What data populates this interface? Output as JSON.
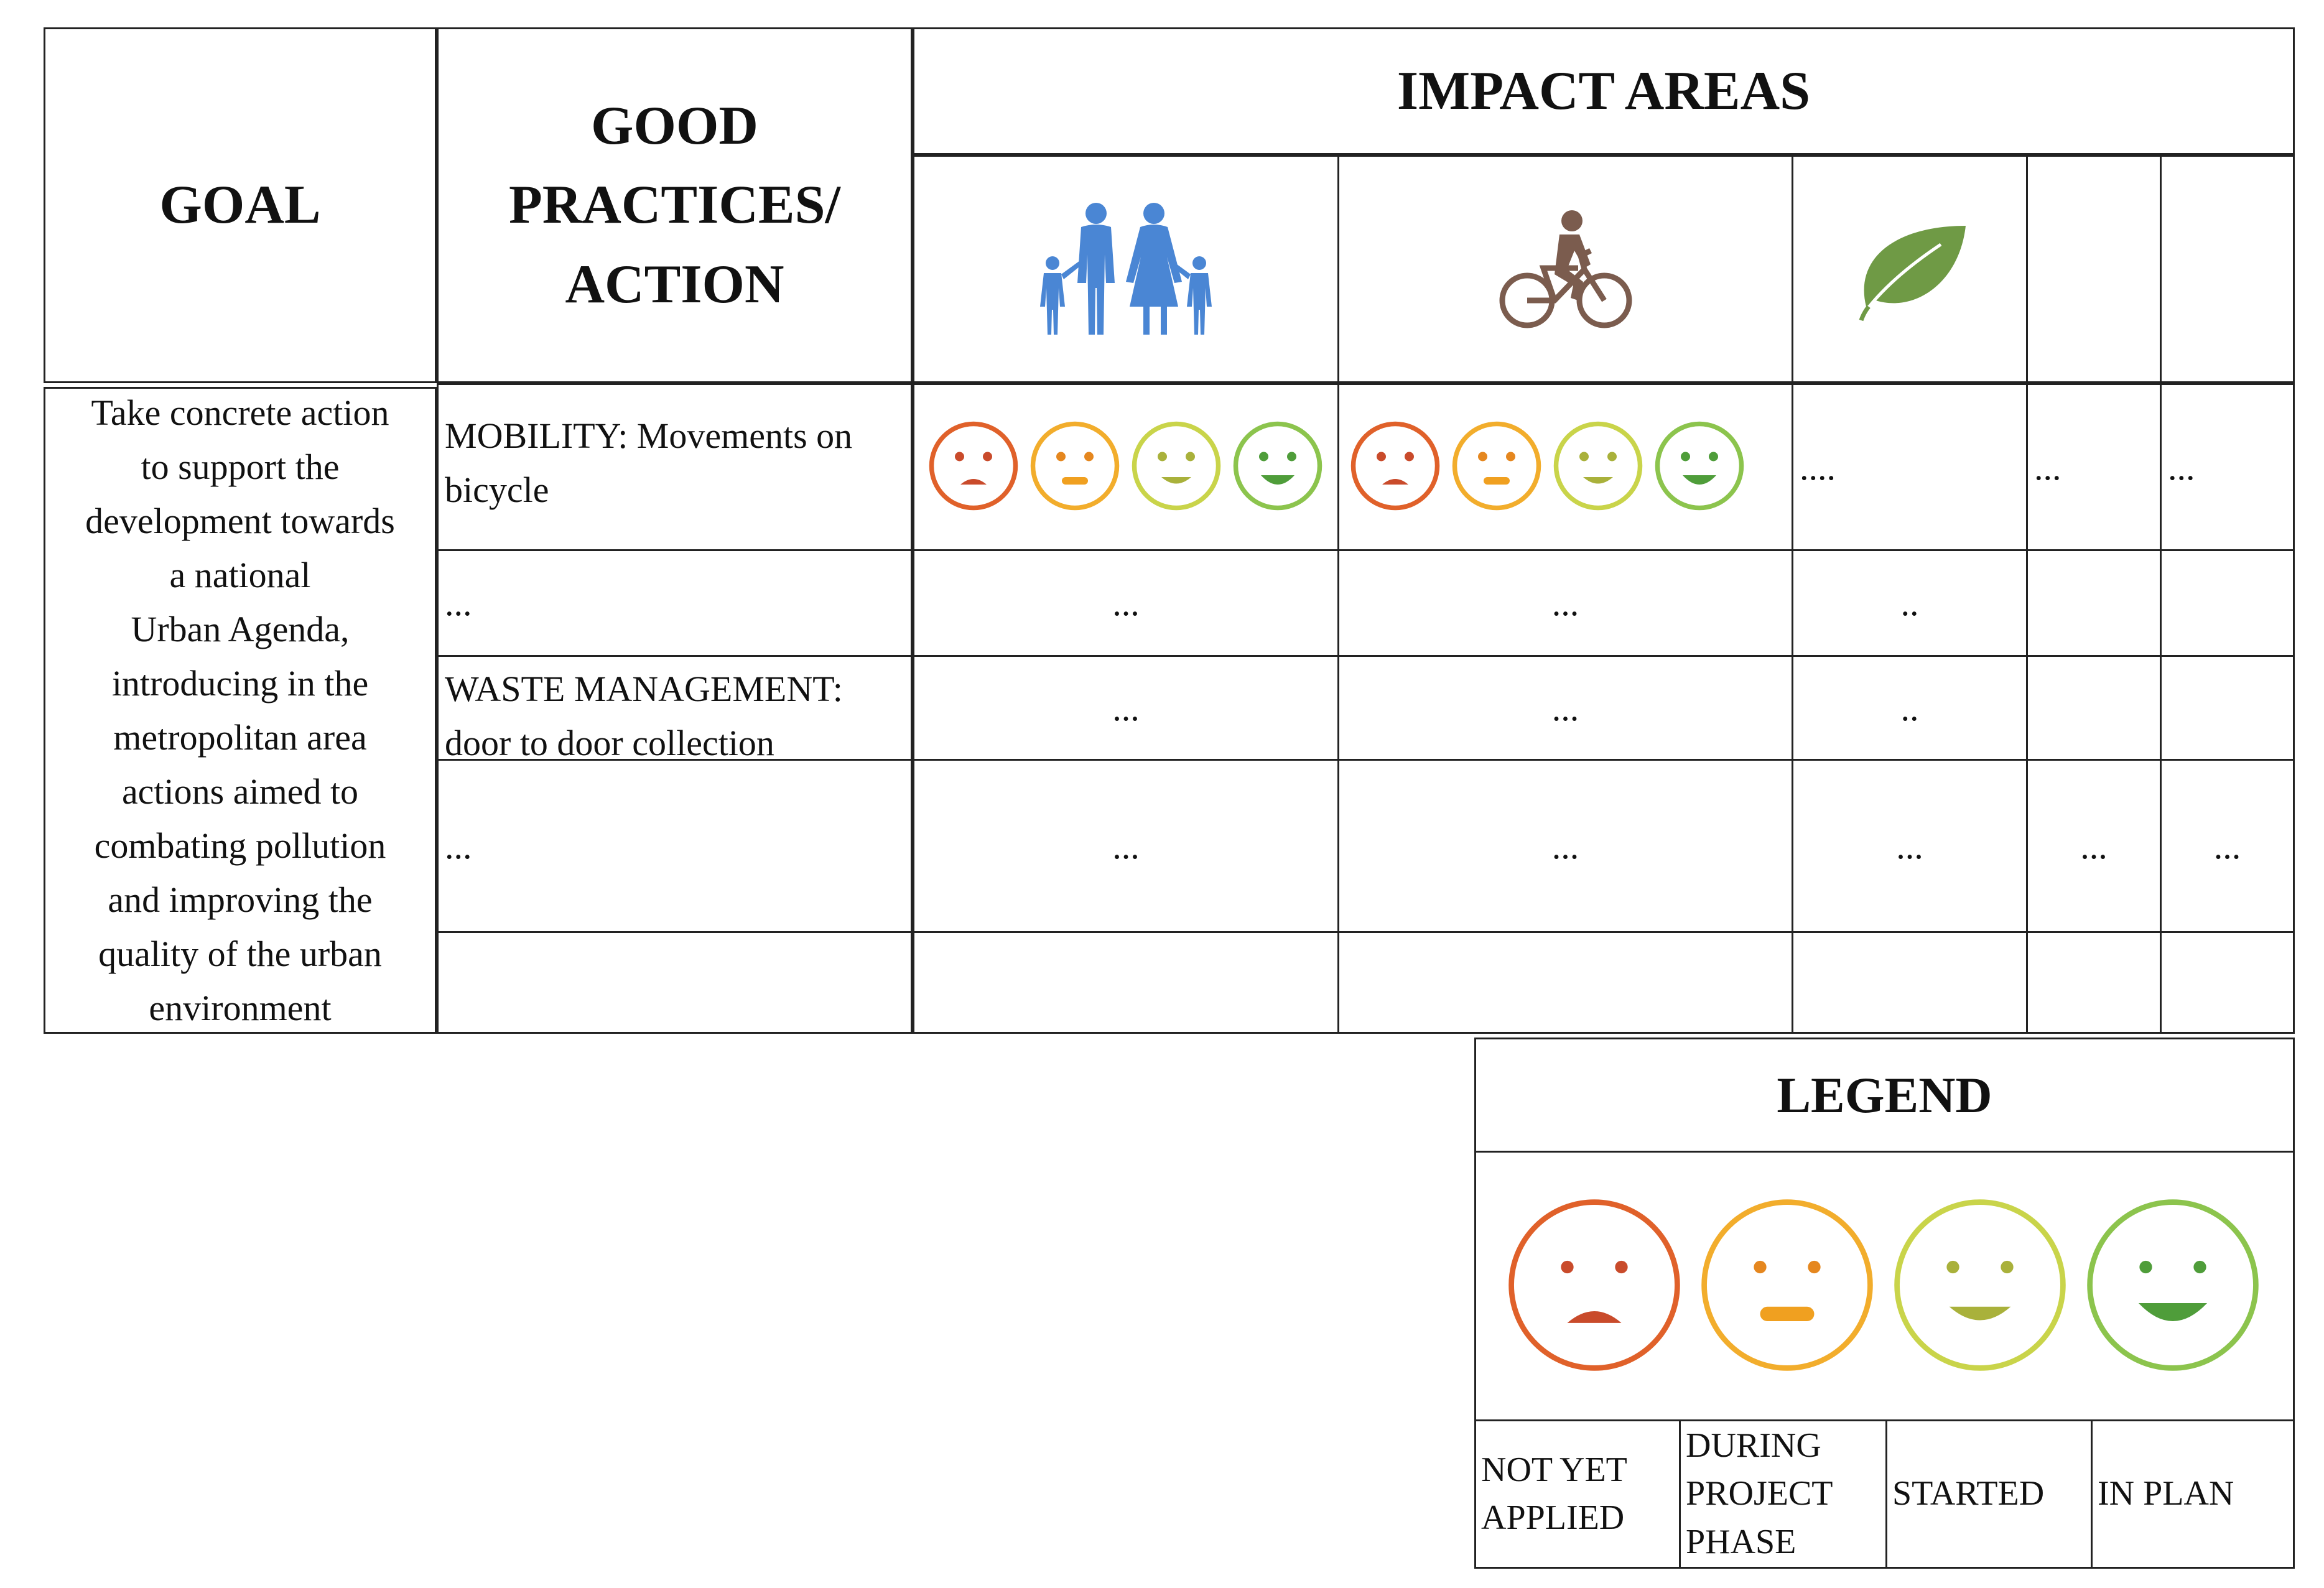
{
  "header": {
    "goal": "GOAL",
    "practices": [
      "GOOD",
      "PRACTICES/",
      "ACTION"
    ],
    "impact_areas": "IMPACT AREAS"
  },
  "impact_icons": [
    "family-icon",
    "cyclist-icon",
    "leaf-icon"
  ],
  "goal_text": [
    "Take concrete action",
    "to support the",
    "development towards",
    "a national",
    "Urban Agenda,",
    "introducing in the",
    "metropolitan area",
    "actions aimed to",
    "combating pollution",
    "and improving the",
    "quality of the urban",
    "environment"
  ],
  "rows": [
    {
      "practice": [
        "MOBILITY: Movements on",
        "bicycle"
      ],
      "col3": "....",
      "col4": "...",
      "col5": "..."
    },
    {
      "practice": [
        "..."
      ],
      "col1": "...",
      "col2": "...",
      "col3": ".."
    },
    {
      "practice": [
        "WASTE MANAGEMENT:",
        "door to door collection"
      ],
      "col1": "...",
      "col2": "...",
      "col3": ".."
    },
    {
      "practice": [
        "..."
      ],
      "col1": "...",
      "col2": "...",
      "col3": "...",
      "col4": "...",
      "col5": "..."
    }
  ],
  "legend": {
    "title": "LEGEND",
    "labels": [
      [
        "NOT YET",
        "APPLIED"
      ],
      [
        "DURING",
        "PROJECT",
        "PHASE"
      ],
      [
        "STARTED"
      ],
      [
        "IN PLAN"
      ]
    ]
  },
  "colors": {
    "face_red": "#e0612a",
    "face_orange": "#f2ad2c",
    "face_yellowgreen": "#c9d44a",
    "face_green": "#8cc44d",
    "people_blue": "#4a86d4",
    "cyclist_brown": "#7b5c4e",
    "leaf_green": "#6f9a45"
  }
}
